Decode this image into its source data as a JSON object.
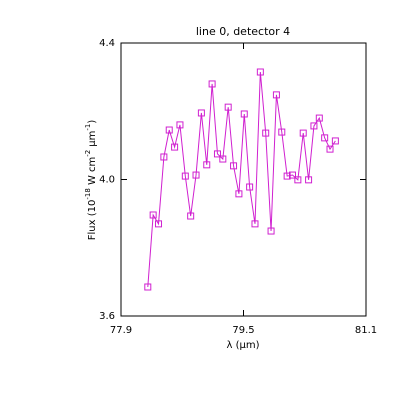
{
  "chart_data": {
    "type": "line",
    "title": "line 0, detector 4",
    "x_label": "λ (μm)",
    "y_label_parts": [
      "Flux (10",
      "-18",
      " W cm",
      "-2",
      "μm",
      "-1",
      ")"
    ],
    "x": [
      78.25,
      78.32,
      78.39,
      78.46,
      78.53,
      78.6,
      78.67,
      78.74,
      78.81,
      78.88,
      78.95,
      79.02,
      79.09,
      79.16,
      79.23,
      79.3,
      79.37,
      79.44,
      79.51,
      79.58,
      79.65,
      79.72,
      79.79,
      79.86,
      79.93,
      80.0,
      80.07,
      80.14,
      80.21,
      80.28,
      80.35,
      80.42,
      80.49,
      80.56,
      80.63,
      80.7
    ],
    "series": [
      {
        "color": "#d020d0",
        "values": [
          3.685,
          3.896,
          3.87,
          4.066,
          4.145,
          4.095,
          4.16,
          4.01,
          3.893,
          4.013,
          4.195,
          4.043,
          4.28,
          4.075,
          4.06,
          4.212,
          4.04,
          3.958,
          4.192,
          3.978,
          3.87,
          4.315,
          4.136,
          3.849,
          4.248,
          4.139,
          4.01,
          4.013,
          3.999,
          4.136,
          3.999,
          4.157,
          4.18,
          4.122,
          4.089,
          4.113
        ]
      }
    ],
    "xlim": [
      77.9,
      81.1
    ],
    "xticks": [
      77.9,
      79.5,
      81.1
    ],
    "ylim": [
      3.6,
      4.4
    ],
    "yticks": [
      3.6,
      {
        "value": 4,
        "label": "4.0"
      },
      4.4
    ],
    "marker": "square"
  }
}
